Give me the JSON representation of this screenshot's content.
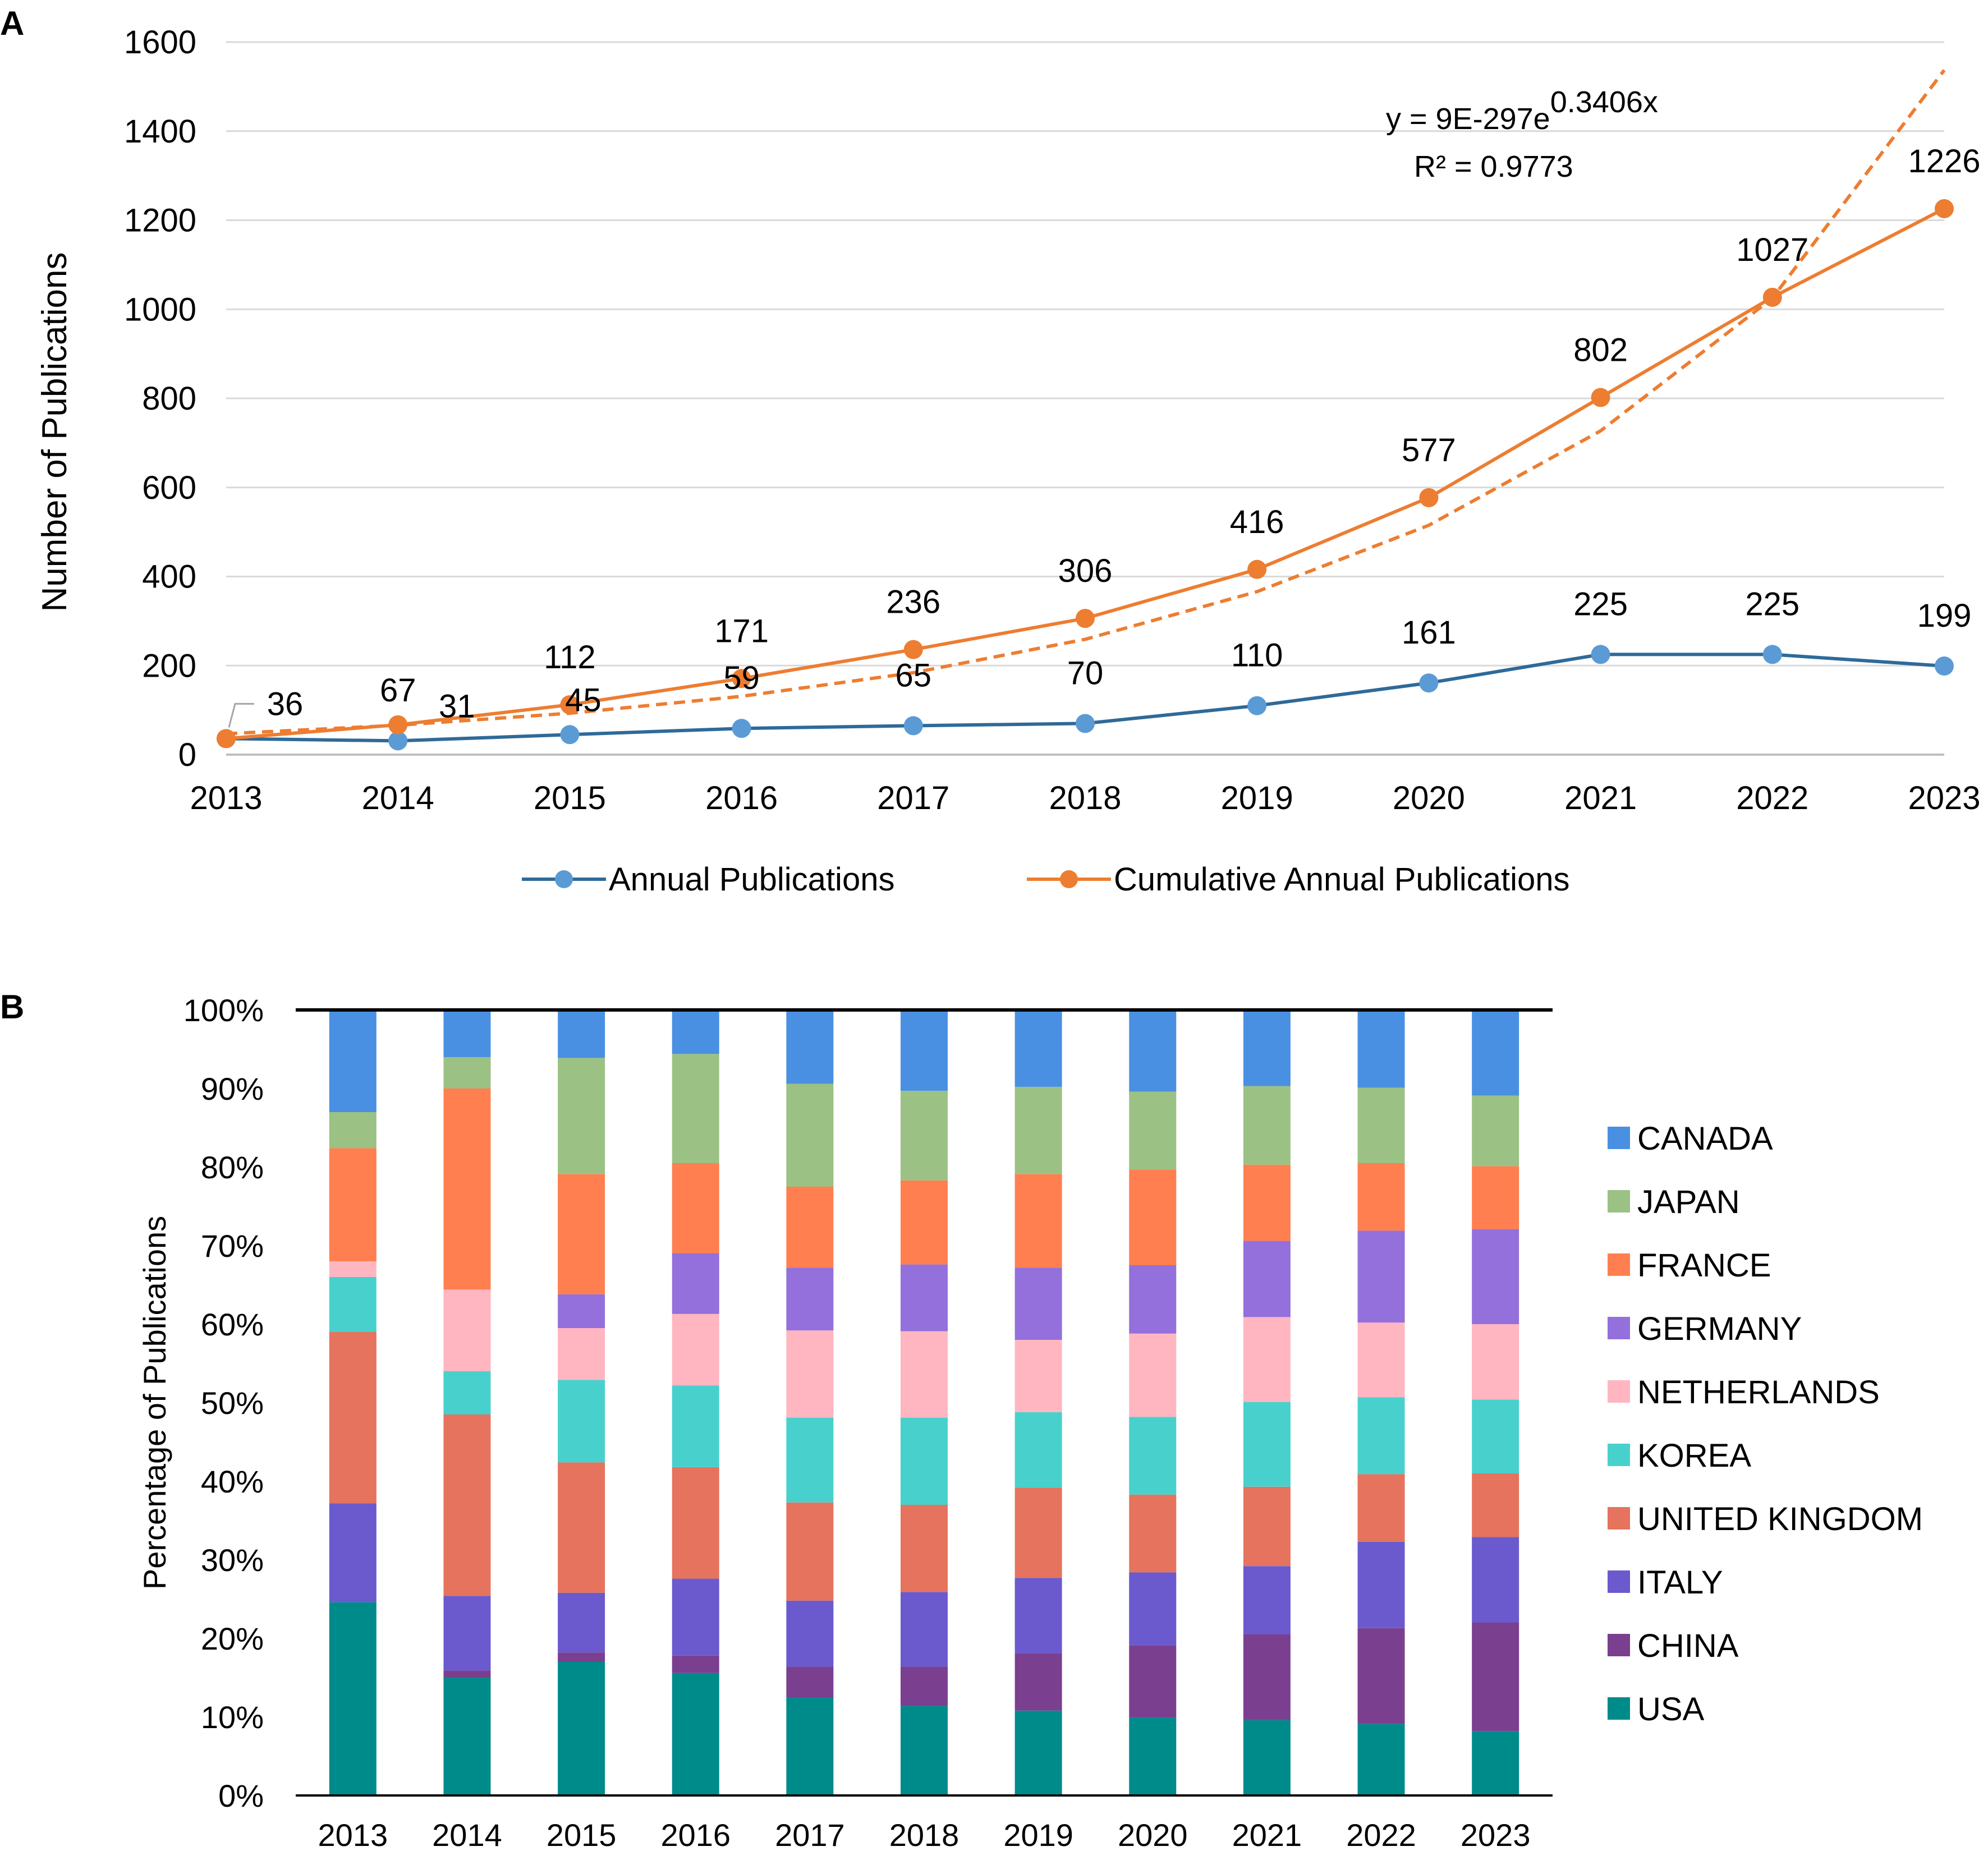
{
  "panels": {
    "a_label": "A",
    "b_label": "B"
  },
  "chart_data": [
    {
      "panel": "A",
      "type": "line",
      "ylabel": "Number of Publications",
      "xlabel": "",
      "ylim": [
        0,
        1600
      ],
      "yticks": [
        0,
        200,
        400,
        600,
        800,
        1000,
        1200,
        1400,
        1600
      ],
      "grid": true,
      "legend_position": "bottom",
      "x": [
        "2013",
        "2014",
        "2015",
        "2016",
        "2017",
        "2018",
        "2019",
        "2020",
        "2021",
        "2022",
        "2023"
      ],
      "series": [
        {
          "name": "Annual Publications",
          "color": "#2e6a99",
          "marker_color": "#5b9bd5",
          "values": [
            36,
            31,
            45,
            59,
            65,
            70,
            110,
            161,
            225,
            225,
            199
          ]
        },
        {
          "name": "Cumulative Annual Publications",
          "color": "#ed7d31",
          "marker_color": "#ed7d31",
          "values": [
            36,
            67,
            112,
            171,
            236,
            306,
            416,
            577,
            802,
            1027,
            1226
          ]
        }
      ],
      "data_labels": {
        "annual": [
          "31",
          "45",
          "59",
          "65",
          "70",
          "110",
          "161",
          "225",
          "225",
          "199"
        ],
        "cumulative": [
          "36",
          "67",
          "112",
          "171",
          "236",
          "306",
          "416",
          "577",
          "802",
          "1027",
          "1226"
        ]
      },
      "trendline": {
        "series": "Cumulative Annual Publications",
        "kind": "exponential",
        "color": "#ed7d31",
        "values": [
          47,
          66,
          93,
          131,
          184,
          259,
          366,
          515,
          727,
          1025,
          1537
        ],
        "equation_main": "y = 9E-297e",
        "equation_exponent": "0.3406x",
        "r_squared": "R² = 0.9773"
      }
    },
    {
      "panel": "B",
      "type": "bar",
      "stacked": true,
      "ylabel": "Percentage of Publications",
      "xlabel": "",
      "ylim": [
        0,
        100
      ],
      "yticks": [
        "0%",
        "10%",
        "20%",
        "30%",
        "40%",
        "50%",
        "60%",
        "70%",
        "80%",
        "90%",
        "100%"
      ],
      "legend_position": "right",
      "categories": [
        "2013",
        "2014",
        "2015",
        "2016",
        "2017",
        "2018",
        "2019",
        "2020",
        "2021",
        "2022",
        "2023"
      ],
      "series": [
        {
          "name": "USA",
          "color": "#008b8b",
          "values": [
            24.6,
            15,
            17,
            15.6,
            12.5,
            11.4,
            10.8,
            9.9,
            9.6,
            9.1,
            8.2
          ]
        },
        {
          "name": "CHINA",
          "color": "#7b3f8f",
          "values": [
            0,
            0.9,
            1.2,
            2.2,
            3.9,
            5,
            7.3,
            9.2,
            10.9,
            12.2,
            13.8
          ]
        },
        {
          "name": "ITALY",
          "color": "#6a5acd",
          "values": [
            12.6,
            9.5,
            7.6,
            9.8,
            8.4,
            9.5,
            9.6,
            9.3,
            8.7,
            11,
            10.9
          ]
        },
        {
          "name": "UNITED KINGDOM",
          "color": "#e5735e",
          "values": [
            21.8,
            23.1,
            16.6,
            14.2,
            12.5,
            11.1,
            11.5,
            9.9,
            10.1,
            8.6,
            8.1
          ]
        },
        {
          "name": "KOREA",
          "color": "#48d1cc",
          "values": [
            7,
            5.5,
            10.5,
            10.4,
            10.8,
            11.1,
            9.6,
            9.9,
            10.8,
            9.8,
            9.4
          ]
        },
        {
          "name": "NETHERLANDS",
          "color": "#ffb6c1",
          "values": [
            2,
            10.4,
            6.6,
            9.1,
            11.1,
            11,
            9.2,
            10.6,
            10.8,
            9.5,
            9.6
          ]
        },
        {
          "name": "GERMANY",
          "color": "#9370db",
          "values": [
            0,
            0,
            4.3,
            7.7,
            8,
            8.5,
            9.2,
            8.7,
            9.7,
            11.7,
            12.1
          ]
        },
        {
          "name": "FRANCE",
          "color": "#ff7f50",
          "values": [
            14.4,
            25.6,
            15.3,
            11.5,
            10.3,
            10.7,
            11.9,
            12.2,
            9.7,
            8.6,
            8
          ]
        },
        {
          "name": "JAPAN",
          "color": "#9cc184",
          "values": [
            4.6,
            4,
            14.8,
            13.9,
            13.1,
            11.4,
            11.1,
            9.9,
            10,
            9.6,
            9
          ]
        },
        {
          "name": "CANADA",
          "color": "#4a90e2",
          "values": [
            13,
            6,
            6.1,
            5.6,
            9.4,
            10.3,
            9.8,
            10.4,
            9.7,
            9.9,
            10.9
          ]
        }
      ]
    }
  ]
}
